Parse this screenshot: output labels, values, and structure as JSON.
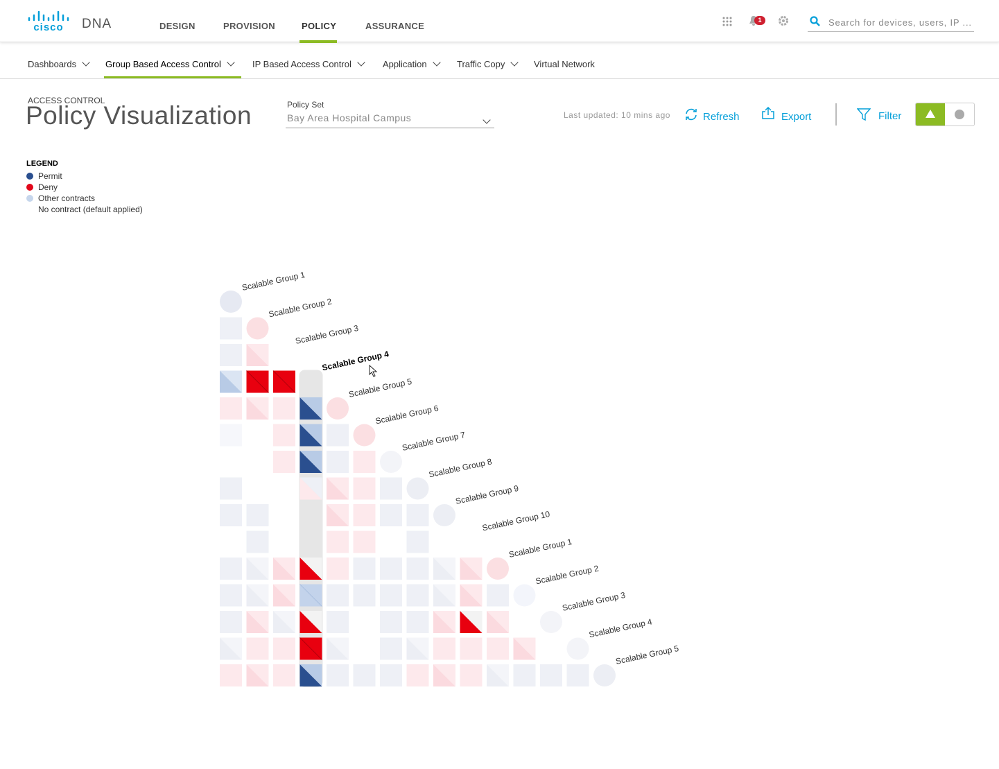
{
  "header": {
    "brand": "cisco",
    "product": "DNA",
    "tabs": [
      "DESIGN",
      "PROVISION",
      "POLICY",
      "ASSURANCE"
    ],
    "notification_count": "1",
    "search_placeholder": "Search for devices, users, IP ..."
  },
  "subnav": [
    "Dashboards",
    "Group Based Access Control",
    "IP Based Access Control",
    "Application",
    "Traffic Copy",
    "Virtual Network"
  ],
  "page": {
    "breadcrumb": "ACCESS CONTROL",
    "title": "Policy Visualization",
    "policy_set_label": "Policy Set",
    "policy_set_value": "Bay Area Hospital Campus",
    "last_updated": "Last updated: 10 mins ago",
    "refresh": "Refresh",
    "export": "Export",
    "filter": "Filter"
  },
  "legend": {
    "title": "LEGEND",
    "items": [
      "Permit",
      "Deny",
      "Other contracts",
      "No contract (default applied)"
    ]
  },
  "matrix": {
    "labels": [
      "Scalable Group 1",
      "Scalable Group 2",
      "Scalable Group 3",
      "Scalable Group 4",
      "Scalable Group 5",
      "Scalable Group 6",
      "Scalable Group 7",
      "Scalable Group 8",
      "Scalable Group 9",
      "Scalable Group 10",
      "Scalable Group 1",
      "Scalable Group 2",
      "Scalable Group 3",
      "Scalable Group 4",
      "Scalable Group 5"
    ]
  }
}
